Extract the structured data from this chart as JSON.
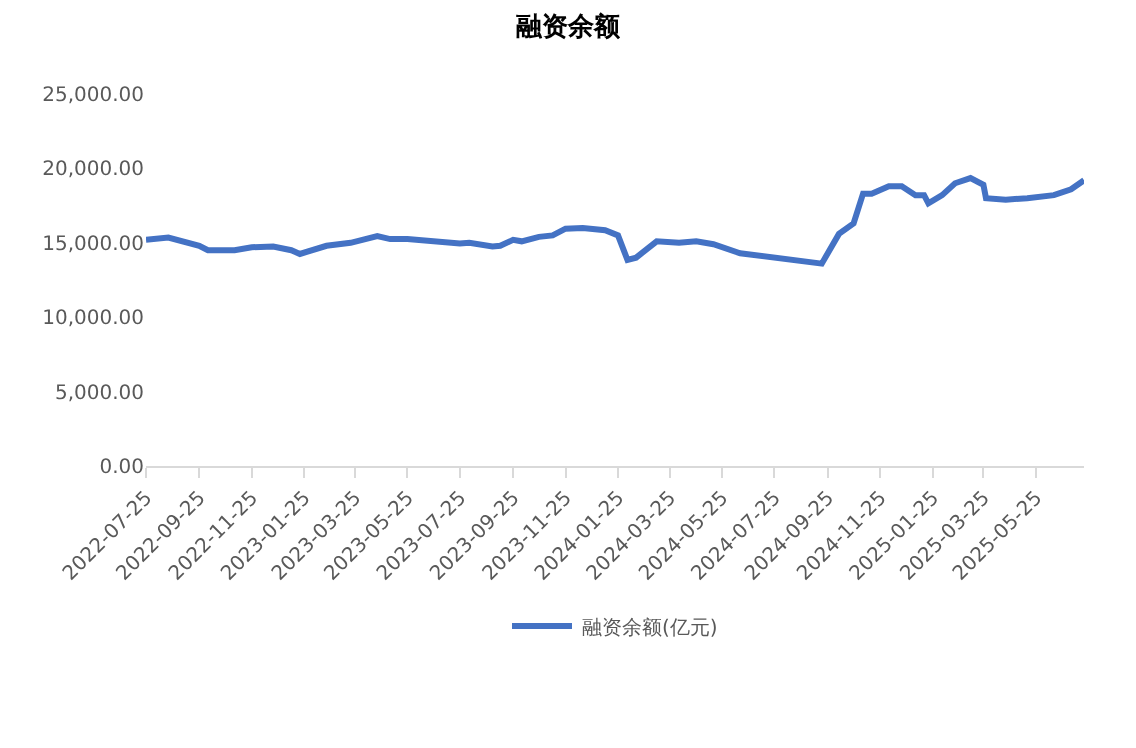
{
  "chart_data": {
    "type": "line",
    "title": "融资余额",
    "x": [
      "2022-07-25",
      "2022-08-20",
      "2022-09-25",
      "2022-10-05",
      "2022-11-05",
      "2022-11-25",
      "2022-12-20",
      "2023-01-10",
      "2023-01-20",
      "2023-02-20",
      "2023-03-20",
      "2023-04-20",
      "2023-05-05",
      "2023-05-25",
      "2023-07-25",
      "2023-08-05",
      "2023-09-01",
      "2023-09-10",
      "2023-09-25",
      "2023-10-05",
      "2023-10-25",
      "2023-11-10",
      "2023-11-25",
      "2023-12-15",
      "2024-01-10",
      "2024-01-25",
      "2024-02-05",
      "2024-02-15",
      "2024-03-10",
      "2024-04-05",
      "2024-04-25",
      "2024-05-15",
      "2024-06-15",
      "2024-09-18",
      "2024-10-08",
      "2024-10-25",
      "2024-11-05",
      "2024-11-15",
      "2024-12-05",
      "2024-12-20",
      "2025-01-05",
      "2025-01-15",
      "2025-01-20",
      "2025-02-05",
      "2025-02-20",
      "2025-03-10",
      "2025-03-25",
      "2025-03-28",
      "2025-04-20",
      "2025-05-15",
      "2025-06-15",
      "2025-07-05",
      "2025-07-20"
    ],
    "series": [
      {
        "name": "融资余额(亿元)",
        "color": "#4472c4",
        "values": [
          15200,
          15350,
          14800,
          14500,
          14500,
          14700,
          14750,
          14500,
          14250,
          14800,
          15000,
          15450,
          15250,
          15250,
          14950,
          15000,
          14750,
          14800,
          15200,
          15100,
          15400,
          15500,
          15950,
          16000,
          15850,
          15500,
          13850,
          14000,
          15100,
          15000,
          15100,
          14900,
          14300,
          13600,
          15600,
          16300,
          18300,
          18300,
          18800,
          18800,
          18200,
          18200,
          17650,
          18200,
          19000,
          19350,
          18900,
          18000,
          17900,
          18000,
          18200,
          18600,
          19200
        ]
      }
    ],
    "xlim": [
      "2022-07-25",
      "2025-07-20"
    ],
    "xticks": [
      "2022-07-25",
      "2022-09-25",
      "2022-11-25",
      "2023-01-25",
      "2023-03-25",
      "2023-05-25",
      "2023-07-25",
      "2023-09-25",
      "2023-11-25",
      "2024-01-25",
      "2024-03-25",
      "2024-05-25",
      "2024-07-25",
      "2024-09-25",
      "2024-11-25",
      "2025-01-25",
      "2025-03-25",
      "2025-05-25"
    ],
    "ylim": [
      0,
      25000
    ],
    "yticks": [
      {
        "value": 0,
        "label": "0.00"
      },
      {
        "value": 5000,
        "label": "5,000.00"
      },
      {
        "value": 10000,
        "label": "10,000.00"
      },
      {
        "value": 15000,
        "label": "15,000.00"
      },
      {
        "value": 20000,
        "label": "20,000.00"
      },
      {
        "value": 25000,
        "label": "25,000.00"
      }
    ],
    "grid": false,
    "legend": "bottom",
    "marker": "none",
    "line_style": "solid"
  }
}
